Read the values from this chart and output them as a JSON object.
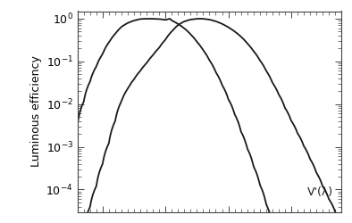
{
  "ylabel": "Luminous efficiency",
  "yticks": [
    1.0,
    0.1,
    0.01,
    0.001,
    0.0001
  ],
  "line_color": "#1a1a1a",
  "line_width": 1.3,
  "annotation": "V'(λ)",
  "background_color": "#ffffff",
  "spine_color": "#444444",
  "figsize": [
    3.94,
    2.5
  ],
  "dpi": 100,
  "xlim": [
    360,
    780
  ],
  "ylim_low": 3e-05,
  "ylim_high": 1.5,
  "ylabel_fontsize": 9,
  "tick_labelsize": 9,
  "annot_fontsize": 9
}
